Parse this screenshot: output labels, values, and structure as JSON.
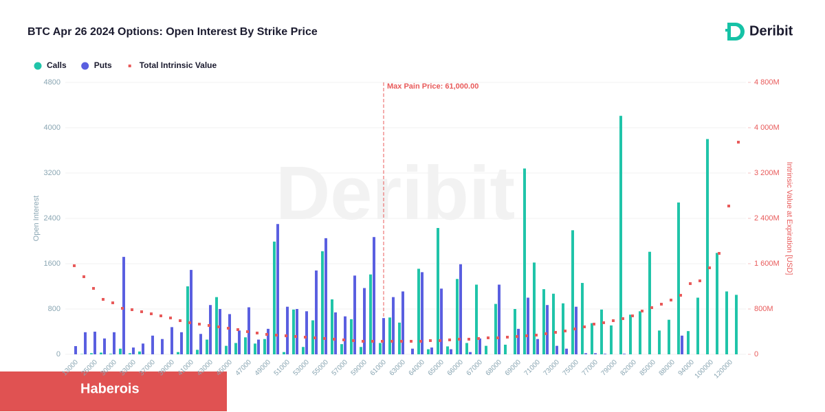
{
  "chart_data": {
    "type": "bar",
    "title": "BTC Apr 26 2024 Options: Open Interest By Strike Price",
    "logo": "Deribit",
    "banner": "Haberois",
    "y_label": "Open Interest",
    "y2_label": "Intrinsic Value at Expiration [USD]",
    "annotation": {
      "text": "Max Pain Price: 61,000.00",
      "x": 61000
    },
    "categories": [
      "13000",
      null,
      "25000",
      null,
      "30000",
      null,
      "33000",
      null,
      "37000",
      null,
      "39000",
      null,
      "41000",
      null,
      "43000",
      null,
      "45000",
      null,
      "47000",
      null,
      "49000",
      null,
      "51000",
      null,
      "53000",
      null,
      "55000",
      null,
      "57000",
      null,
      "59000",
      null,
      "61000",
      null,
      "63000",
      null,
      "64000",
      null,
      "65000",
      null,
      "66000",
      null,
      "67000",
      null,
      "68000",
      null,
      "69000",
      null,
      "71000",
      null,
      "73000",
      null,
      "75000",
      null,
      "77000",
      null,
      "79000",
      null,
      "82000",
      null,
      "85000",
      null,
      "88000",
      null,
      "94000",
      null,
      "100000",
      null,
      "120000",
      null
    ],
    "series": [
      {
        "name": "Calls",
        "color": "#20c4a9",
        "values": [
          0,
          5,
          20,
          30,
          10,
          100,
          20,
          50,
          0,
          0,
          0,
          40,
          1200,
          80,
          260,
          1010,
          150,
          200,
          300,
          190,
          270,
          1990,
          40,
          790,
          130,
          600,
          1820,
          970,
          180,
          620,
          130,
          1410,
          200,
          650,
          560,
          0,
          1510,
          90,
          2230,
          140,
          1330,
          200,
          1230,
          150,
          890,
          170,
          800,
          3280,
          1620,
          1150,
          1070,
          900,
          2190,
          1260,
          550,
          790,
          510,
          4210,
          700,
          760,
          1810,
          420,
          610,
          2680,
          410,
          1000,
          3800,
          1790,
          1110,
          1050
        ]
      },
      {
        "name": "Puts",
        "color": "#5a5fe0",
        "values": [
          145,
          390,
          400,
          280,
          390,
          1720,
          120,
          190,
          330,
          270,
          480,
          390,
          1490,
          360,
          870,
          800,
          710,
          420,
          830,
          260,
          450,
          2300,
          840,
          800,
          760,
          1480,
          2050,
          740,
          670,
          1390,
          1170,
          2070,
          640,
          1010,
          1110,
          100,
          1450,
          120,
          1160,
          90,
          1590,
          40,
          280,
          0,
          1230,
          0,
          450,
          1000,
          270,
          870,
          150,
          100,
          840,
          20,
          20,
          10,
          0,
          10,
          0,
          0,
          0,
          0,
          0,
          330,
          0,
          0,
          0,
          0,
          0,
          0
        ]
      },
      {
        "name": "Total Intrinsic Value",
        "color": "#e85a5a",
        "axis": "y2",
        "values": [
          1564,
          1370,
          1164,
          970,
          909,
          812,
          788,
          752,
          715,
          679,
          642,
          594,
          558,
          533,
          509,
          485,
          461,
          436,
          400,
          376,
          352,
          339,
          327,
          315,
          303,
          291,
          279,
          267,
          255,
          242,
          230,
          230,
          230,
          230,
          230,
          230,
          230,
          242,
          242,
          255,
          267,
          267,
          279,
          291,
          291,
          303,
          315,
          327,
          339,
          364,
          388,
          412,
          448,
          485,
          533,
          558,
          594,
          630,
          679,
          764,
          824,
          885,
          958,
          1042,
          1248,
          1297,
          1527,
          1782,
          2618,
          3745
        ]
      }
    ],
    "ylim": [
      0,
      4800
    ],
    "yticks": [
      0,
      800,
      1600,
      2400,
      3200,
      4000,
      4800
    ],
    "y2lim": [
      0,
      4800
    ],
    "y2ticks": [
      0,
      {
        "value": 800,
        "label": "800M"
      },
      {
        "value": 1600,
        "label": "1 600M"
      },
      {
        "value": 2400,
        "label": "2 400M"
      },
      {
        "value": 3200,
        "label": "3 200M"
      },
      {
        "value": 4000,
        "label": "4 000M"
      },
      {
        "value": 4800,
        "label": "4 800M"
      }
    ],
    "grid": true,
    "legend": "top-left"
  }
}
